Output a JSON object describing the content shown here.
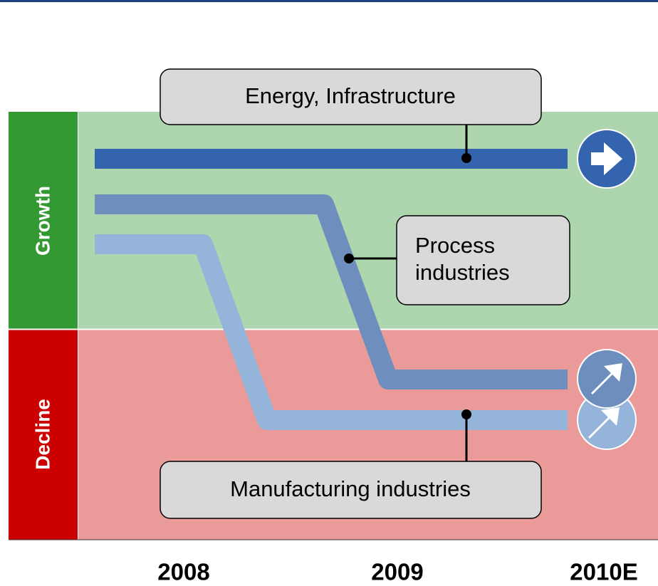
{
  "zones": [
    {
      "label": "Growth"
    },
    {
      "label": "Decline"
    }
  ],
  "lines": [
    {
      "label": "Energy, Infrastructure"
    },
    {
      "label": "Process industries"
    },
    {
      "label": "Manufacturing industries"
    }
  ],
  "years": [
    "2008",
    "2009",
    "2010E"
  ]
}
